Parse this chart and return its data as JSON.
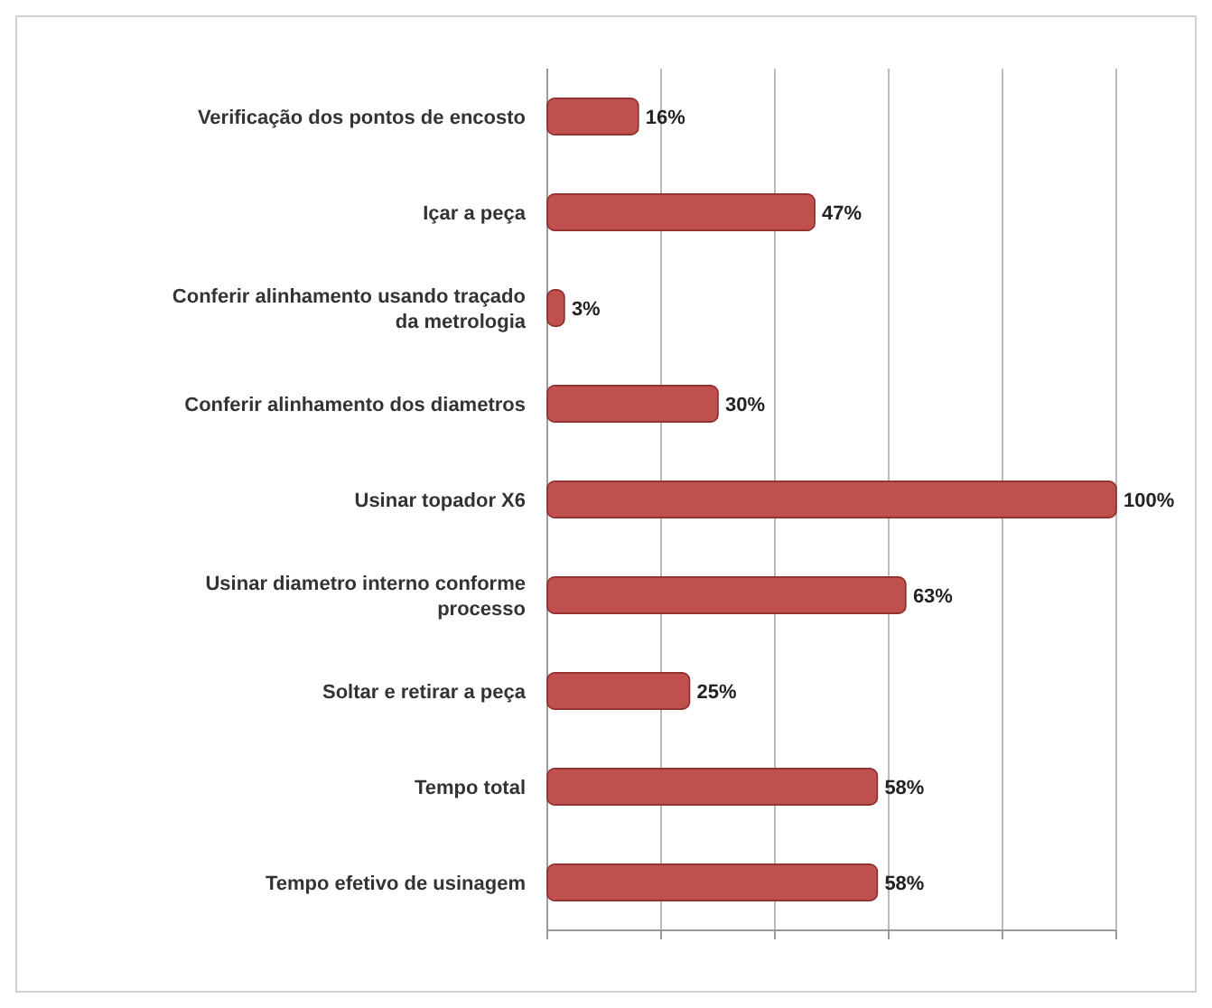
{
  "chart_data": {
    "type": "bar",
    "orientation": "horizontal",
    "categories": [
      "Verificação dos pontos de encosto",
      "Içar a peça",
      "Conferir alinhamento usando traçado da metrologia",
      "Conferir alinhamento dos diametros",
      "Usinar topador X6",
      "Usinar diametro interno conforme processo",
      "Soltar e retirar a peça",
      "Tempo total",
      "Tempo efetivo de usinagem"
    ],
    "values": [
      16,
      47,
      3,
      30,
      100,
      63,
      25,
      58,
      58
    ],
    "value_labels": [
      "16%",
      "47%",
      "3%",
      "30%",
      "100%",
      "63%",
      "25%",
      "58%",
      "58%"
    ],
    "color": "#c0504d",
    "xlim": [
      0,
      100
    ],
    "xticks": [
      {
        "value": 0,
        "label": null
      },
      {
        "value": 20,
        "label": null
      },
      {
        "value": 40,
        "label": null
      },
      {
        "value": 60,
        "label": null
      },
      {
        "value": 80,
        "label": null
      },
      {
        "value": 100,
        "label": null
      }
    ],
    "tick_labels": "y",
    "grid": "x"
  }
}
